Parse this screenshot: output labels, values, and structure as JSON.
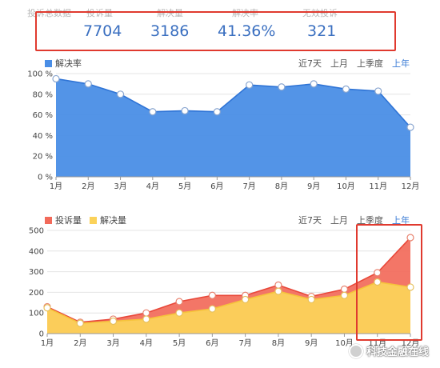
{
  "stats": [
    {
      "label": "投诉总数据",
      "value": ""
    },
    {
      "label": "投诉量",
      "value": "7704"
    },
    {
      "label": "解决量",
      "value": "3186"
    },
    {
      "label": "解决率",
      "value": "41.36%"
    },
    {
      "label": "无效投诉",
      "value": "321"
    }
  ],
  "periods": [
    "近7天",
    "上月",
    "上季度",
    "上年"
  ],
  "active_period": "上年",
  "colors": {
    "resolution_rate": "#4a8ee6",
    "complaints": "#f26a5a",
    "resolved": "#fbd25a",
    "highlight": "#e03a2f",
    "active_tab": "#3a7bd5"
  },
  "watermark": "科技金融在线",
  "watermark_icon": "wechat-icon",
  "chart_data": [
    {
      "type": "area",
      "categories": [
        "1月",
        "2月",
        "3月",
        "4月",
        "5月",
        "6月",
        "7月",
        "8月",
        "9月",
        "10月",
        "11月",
        "12月"
      ],
      "series": [
        {
          "name": "解决率",
          "values": [
            95,
            90,
            80,
            63,
            64,
            63,
            89,
            87,
            90,
            85,
            83,
            48
          ]
        }
      ],
      "yticks": [
        "0 %",
        "20 %",
        "40 %",
        "60 %",
        "80 %",
        "100 %"
      ],
      "ylim": [
        0,
        100
      ],
      "grid": true,
      "legend": "top-left"
    },
    {
      "type": "area",
      "categories": [
        "1月",
        "2月",
        "3月",
        "4月",
        "5月",
        "6月",
        "7月",
        "8月",
        "9月",
        "10月",
        "11月",
        "12月"
      ],
      "series": [
        {
          "name": "投诉量",
          "values": [
            130,
            55,
            70,
            100,
            155,
            185,
            185,
            235,
            180,
            215,
            295,
            465
          ]
        },
        {
          "name": "解决量",
          "values": [
            125,
            50,
            60,
            70,
            100,
            120,
            165,
            205,
            165,
            185,
            250,
            225
          ]
        }
      ],
      "yticks": [
        "0",
        "100",
        "200",
        "300",
        "400",
        "500"
      ],
      "ylim": [
        0,
        500
      ],
      "grid": true,
      "legend": "top-left"
    }
  ]
}
